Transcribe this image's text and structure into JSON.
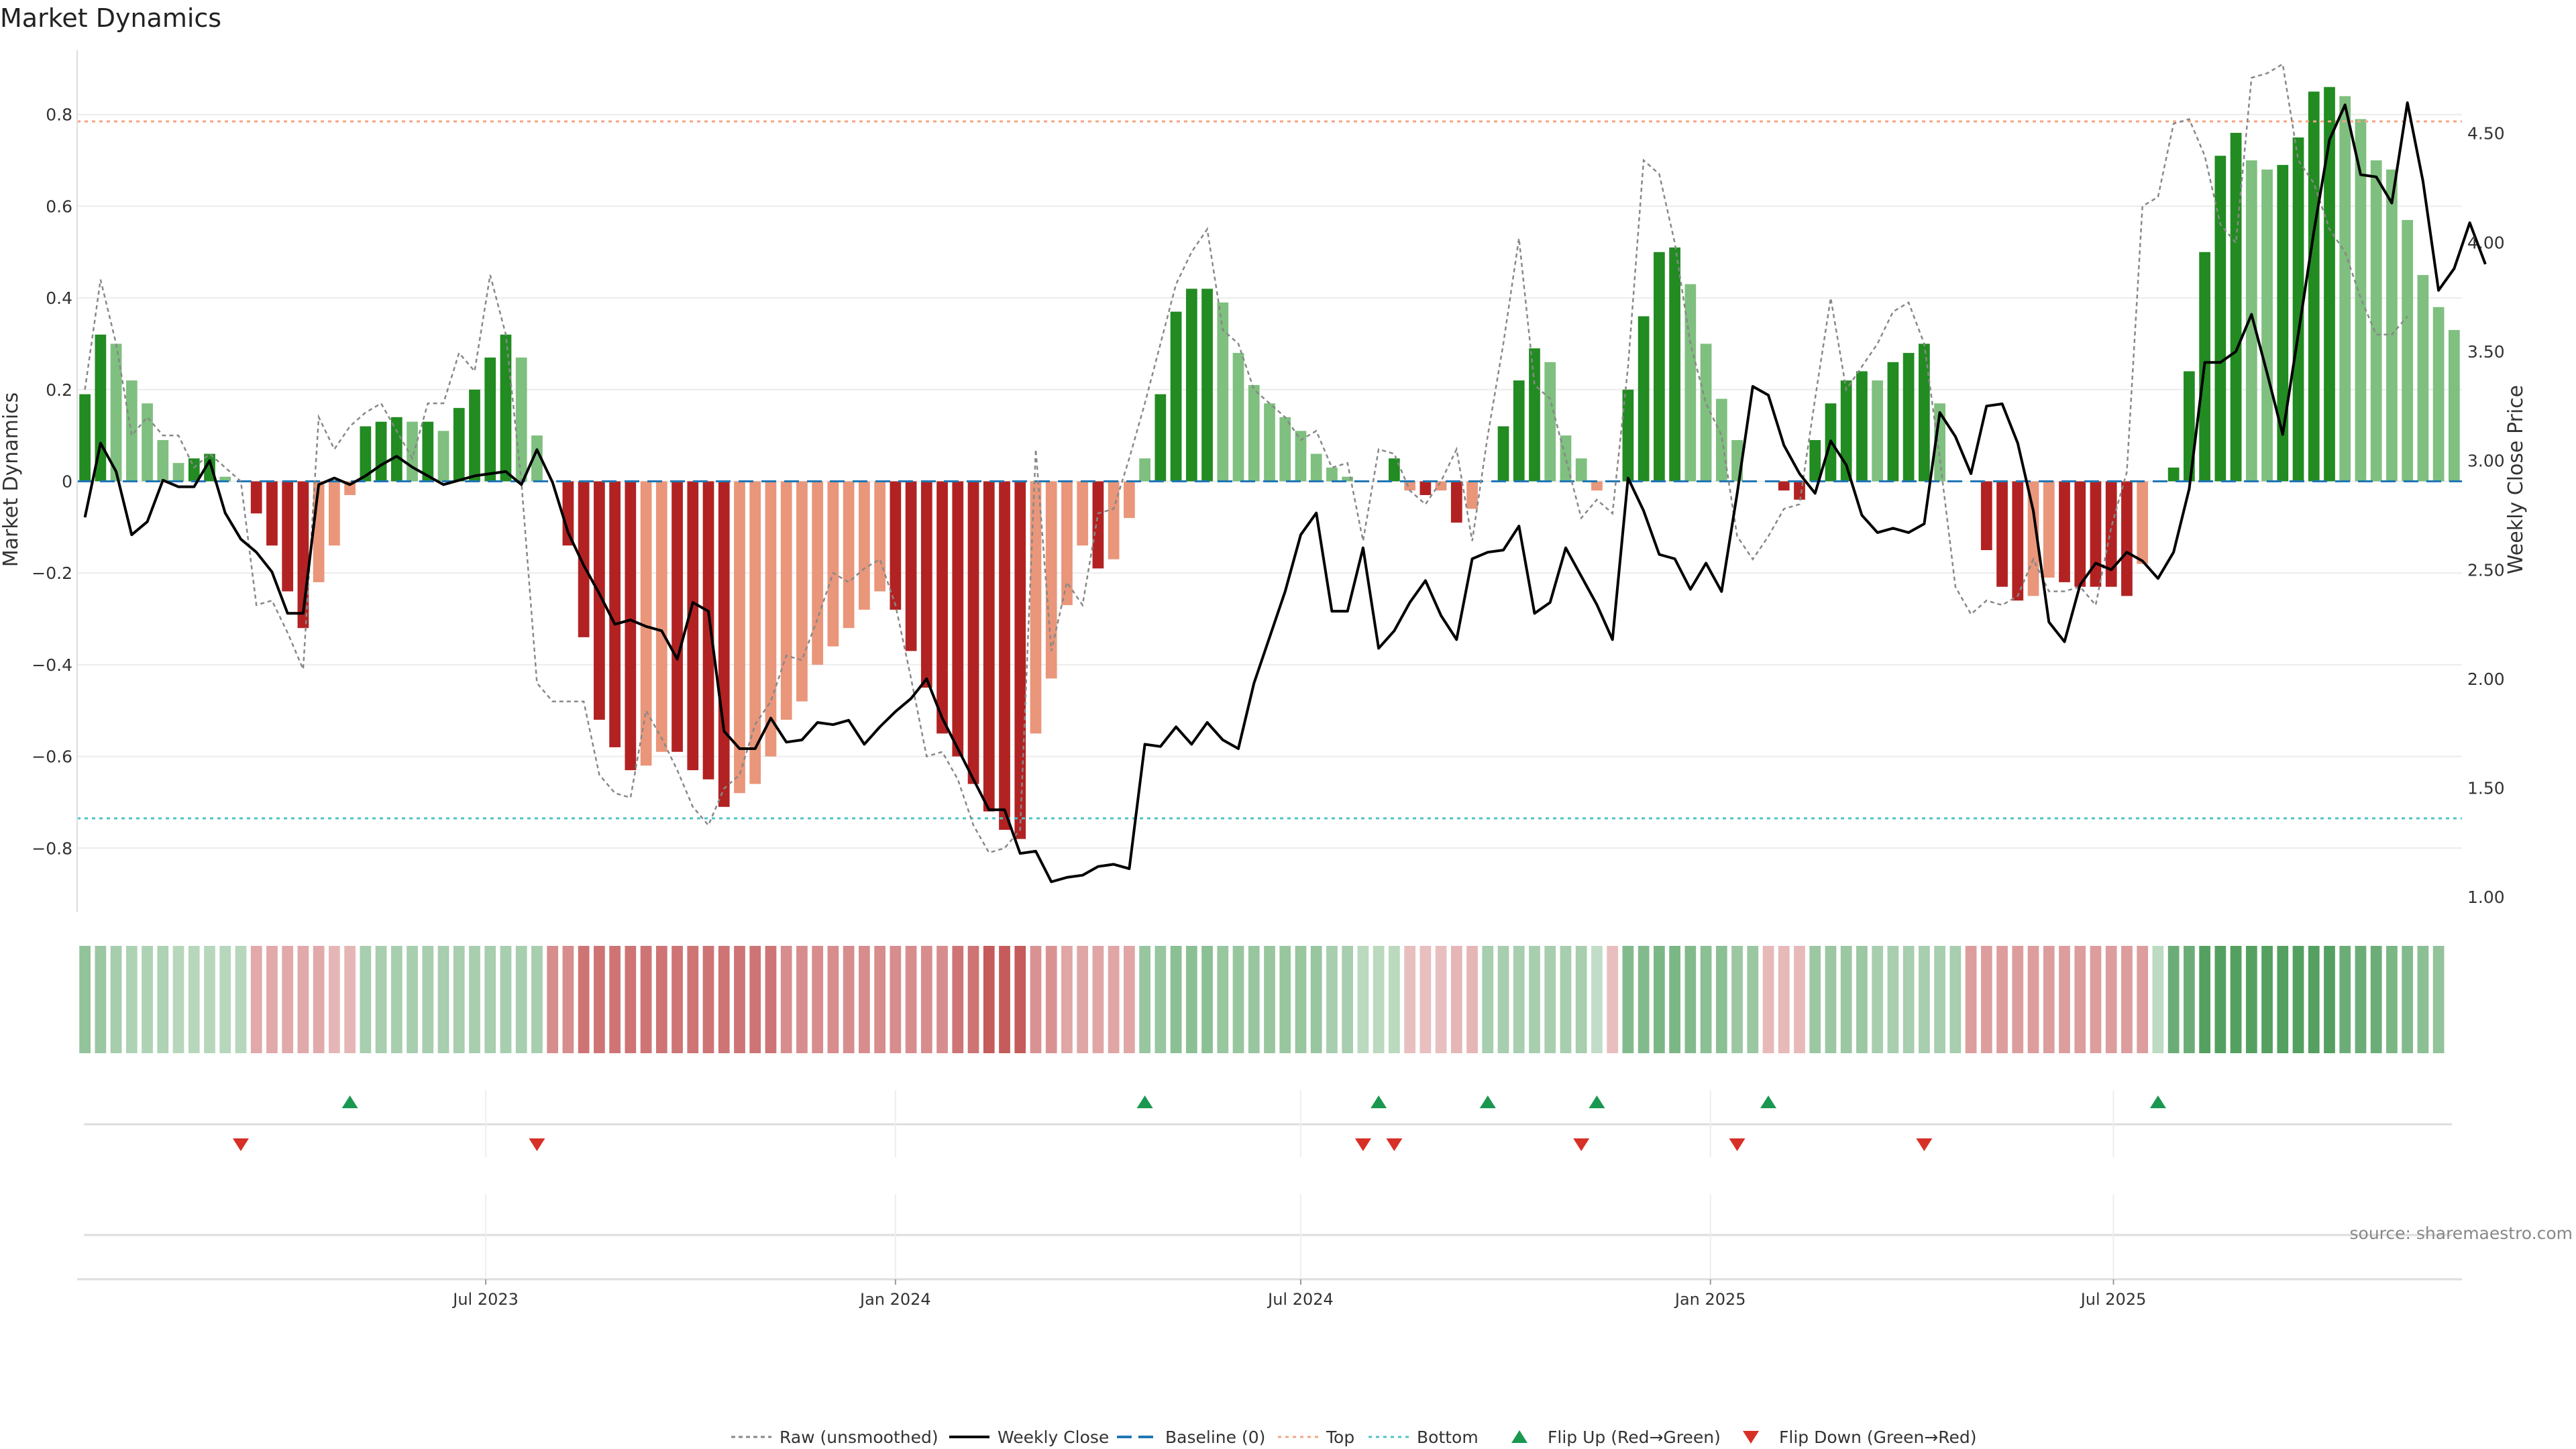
{
  "title": "Market Dynamics",
  "source_note": "source: sharemaestro.com",
  "chart_data": {
    "type": "bar",
    "ylabel_left": "Market Dynamics",
    "ylabel_right": "Weekly Close Price",
    "left_axis": {
      "ylim": [
        -0.94,
        0.94
      ],
      "ticks": [
        -0.8,
        -0.6,
        -0.4,
        -0.2,
        0,
        0.2,
        0.4,
        0.6,
        0.8
      ],
      "tick_labels": [
        "−0.8",
        "−0.6",
        "−0.4",
        "−0.2",
        "0",
        "0.2",
        "0.4",
        "0.6",
        "0.8"
      ]
    },
    "right_axis": {
      "ylim": [
        0.93,
        4.88
      ],
      "ticks": [
        1.0,
        1.5,
        2.0,
        2.5,
        3.0,
        3.5,
        4.0,
        4.5
      ],
      "tick_labels": [
        "1.00",
        "1.50",
        "2.00",
        "2.50",
        "3.00",
        "3.50",
        "4.00",
        "4.50"
      ]
    },
    "top_level": 0.785,
    "bottom_level": -0.735,
    "x_axis": {
      "start": "2023-01-02",
      "ticks": [
        {
          "date": "2023-07-01",
          "label": "Jul 2023"
        },
        {
          "date": "2024-01-01",
          "label": "Jan 2024"
        },
        {
          "date": "2024-07-01",
          "label": "Jul 2024"
        },
        {
          "date": "2025-01-01",
          "label": "Jan 2025"
        },
        {
          "date": "2025-07-01",
          "label": "Jul 2025"
        }
      ]
    },
    "bars": [
      0.19,
      0.32,
      0.3,
      0.22,
      0.17,
      0.09,
      0.04,
      0.05,
      0.06,
      0.01,
      0.0,
      -0.07,
      -0.14,
      -0.24,
      -0.32,
      -0.22,
      -0.14,
      -0.03,
      0.12,
      0.13,
      0.14,
      0.13,
      0.13,
      0.11,
      0.16,
      0.2,
      0.27,
      0.32,
      0.27,
      0.1,
      0.0,
      -0.14,
      -0.34,
      -0.52,
      -0.58,
      -0.63,
      -0.62,
      -0.59,
      -0.59,
      -0.63,
      -0.65,
      -0.71,
      -0.68,
      -0.66,
      -0.6,
      -0.52,
      -0.48,
      -0.4,
      -0.36,
      -0.32,
      -0.28,
      -0.24,
      -0.28,
      -0.37,
      -0.45,
      -0.55,
      -0.6,
      -0.66,
      -0.72,
      -0.76,
      -0.78,
      -0.55,
      -0.43,
      -0.27,
      -0.14,
      -0.19,
      -0.17,
      -0.08,
      0.05,
      0.19,
      0.37,
      0.42,
      0.42,
      0.39,
      0.28,
      0.21,
      0.17,
      0.14,
      0.11,
      0.06,
      0.03,
      0.01,
      0.0,
      0.0,
      0.05,
      -0.02,
      -0.03,
      -0.02,
      -0.09,
      -0.06,
      0.0,
      0.12,
      0.22,
      0.29,
      0.26,
      0.1,
      0.05,
      -0.02,
      0.0,
      0.2,
      0.36,
      0.5,
      0.51,
      0.43,
      0.3,
      0.18,
      0.09,
      0.0,
      0.0,
      -0.02,
      -0.04,
      0.09,
      0.17,
      0.22,
      0.24,
      0.22,
      0.26,
      0.28,
      0.3,
      0.17,
      0.0,
      0.0,
      -0.15,
      -0.23,
      -0.26,
      -0.25,
      -0.21,
      -0.22,
      -0.23,
      -0.23,
      -0.23,
      -0.25,
      -0.18,
      0.0,
      0.03,
      0.24,
      0.5,
      0.71,
      0.76,
      0.7,
      0.68,
      0.69,
      0.75,
      0.85,
      0.86,
      0.84,
      0.79,
      0.7,
      0.68,
      0.57,
      0.45,
      0.38,
      0.33
    ],
    "raw": [
      0.2,
      0.44,
      0.3,
      0.1,
      0.14,
      0.1,
      0.1,
      0.03,
      0.06,
      0.03,
      0.0,
      -0.27,
      -0.26,
      -0.33,
      -0.41,
      0.14,
      0.07,
      0.12,
      0.15,
      0.17,
      0.11,
      0.05,
      0.17,
      0.17,
      0.28,
      0.24,
      0.45,
      0.32,
      0.0,
      -0.44,
      -0.48,
      -0.48,
      -0.48,
      -0.64,
      -0.68,
      -0.69,
      -0.5,
      -0.56,
      -0.63,
      -0.71,
      -0.75,
      -0.67,
      -0.64,
      -0.53,
      -0.48,
      -0.38,
      -0.39,
      -0.3,
      -0.2,
      -0.22,
      -0.19,
      -0.17,
      -0.27,
      -0.43,
      -0.6,
      -0.59,
      -0.65,
      -0.75,
      -0.81,
      -0.8,
      -0.76,
      0.07,
      -0.37,
      -0.22,
      -0.27,
      -0.07,
      -0.06,
      0.05,
      0.17,
      0.3,
      0.43,
      0.5,
      0.55,
      0.33,
      0.3,
      0.2,
      0.17,
      0.14,
      0.09,
      0.11,
      0.03,
      0.04,
      -0.13,
      0.07,
      0.06,
      -0.02,
      -0.05,
      0.0,
      0.07,
      -0.13,
      0.1,
      0.3,
      0.53,
      0.21,
      0.18,
      0.05,
      -0.08,
      -0.04,
      -0.07,
      0.25,
      0.7,
      0.67,
      0.52,
      0.3,
      0.17,
      0.1,
      -0.12,
      -0.17,
      -0.12,
      -0.06,
      -0.05,
      0.18,
      0.4,
      0.2,
      0.25,
      0.3,
      0.37,
      0.39,
      0.3,
      0.05,
      -0.23,
      -0.29,
      -0.26,
      -0.27,
      -0.25,
      -0.17,
      -0.24,
      -0.24,
      -0.23,
      -0.27,
      -0.1,
      0.02,
      0.6,
      0.62,
      0.78,
      0.79,
      0.71,
      0.56,
      0.52,
      0.88,
      0.89,
      0.91,
      0.7,
      0.65,
      0.55,
      0.5,
      0.4,
      0.32,
      0.32,
      0.36
    ],
    "series": [
      {
        "name": "Weekly Close",
        "values": [
          2.74,
          3.08,
          2.95,
          2.66,
          2.72,
          2.91,
          2.88,
          2.88,
          3.0,
          2.76,
          2.64,
          2.58,
          2.49,
          2.3,
          2.3,
          2.89,
          2.92,
          2.89,
          2.93,
          2.98,
          3.02,
          2.97,
          2.93,
          2.89,
          2.91,
          2.93,
          2.94,
          2.95,
          2.89,
          3.05,
          2.9,
          2.67,
          2.52,
          2.39,
          2.25,
          2.27,
          2.24,
          2.22,
          2.09,
          2.35,
          2.31,
          1.76,
          1.68,
          1.68,
          1.82,
          1.71,
          1.72,
          1.8,
          1.79,
          1.81,
          1.7,
          1.78,
          1.85,
          1.91,
          2.0,
          1.82,
          1.68,
          1.54,
          1.4,
          1.4,
          1.2,
          1.21,
          1.07,
          1.09,
          1.1,
          1.14,
          1.15,
          1.13,
          1.7,
          1.69,
          1.78,
          1.7,
          1.8,
          1.72,
          1.68,
          1.98,
          2.19,
          2.4,
          2.66,
          2.76,
          2.31,
          2.31,
          2.6,
          2.14,
          2.22,
          2.35,
          2.45,
          2.29,
          2.18,
          2.55,
          2.58,
          2.59,
          2.7,
          2.3,
          2.35,
          2.6,
          2.47,
          2.34,
          2.18,
          2.92,
          2.77,
          2.57,
          2.55,
          2.41,
          2.53,
          2.4,
          2.85,
          3.34,
          3.3,
          3.07,
          2.94,
          2.85,
          3.09,
          2.98,
          2.75,
          2.67,
          2.69,
          2.67,
          2.71,
          3.22,
          3.11,
          2.94,
          3.25,
          3.26,
          3.08,
          2.77,
          2.26,
          2.17,
          2.43,
          2.53,
          2.5,
          2.58,
          2.54,
          2.46,
          2.58,
          2.87,
          3.45,
          3.45,
          3.5,
          3.67,
          3.4,
          3.12,
          3.58,
          4.05,
          4.47,
          4.63,
          4.31,
          4.3,
          4.18,
          4.64,
          4.28,
          3.78,
          3.88,
          4.09,
          3.9
        ]
      }
    ],
    "regime_strip": [
      0.45,
      0.4,
      0.33,
      0.28,
      0.28,
      0.28,
      0.22,
      0.22,
      0.22,
      0.22,
      0.22,
      -0.28,
      -0.28,
      -0.28,
      -0.28,
      -0.28,
      -0.2,
      -0.2,
      0.32,
      0.32,
      0.32,
      0.32,
      0.32,
      0.32,
      0.32,
      0.32,
      0.32,
      0.32,
      0.32,
      0.32,
      -0.45,
      -0.45,
      -0.6,
      -0.6,
      -0.6,
      -0.6,
      -0.6,
      -0.6,
      -0.6,
      -0.6,
      -0.6,
      -0.6,
      -0.6,
      -0.6,
      -0.6,
      -0.45,
      -0.45,
      -0.45,
      -0.45,
      -0.45,
      -0.45,
      -0.45,
      -0.45,
      -0.45,
      -0.45,
      -0.45,
      -0.6,
      -0.6,
      -0.75,
      -0.75,
      -0.75,
      -0.42,
      -0.42,
      -0.3,
      -0.3,
      -0.3,
      -0.3,
      -0.3,
      0.42,
      0.42,
      0.5,
      0.5,
      0.5,
      0.42,
      0.42,
      0.42,
      0.42,
      0.42,
      0.42,
      0.42,
      0.32,
      0.32,
      0.2,
      0.2,
      0.2,
      -0.15,
      -0.15,
      -0.15,
      -0.2,
      -0.2,
      0.32,
      0.32,
      0.32,
      0.32,
      0.32,
      0.32,
      0.32,
      0.15,
      -0.15,
      0.55,
      0.55,
      0.6,
      0.6,
      0.55,
      0.5,
      0.5,
      0.4,
      0.4,
      -0.18,
      -0.18,
      -0.18,
      0.4,
      0.4,
      0.4,
      0.4,
      0.32,
      0.32,
      0.32,
      0.32,
      0.32,
      0.32,
      -0.35,
      -0.35,
      -0.35,
      -0.35,
      -0.35,
      -0.35,
      -0.35,
      -0.35,
      -0.35,
      -0.35,
      -0.35,
      -0.35,
      0.18,
      0.7,
      0.7,
      0.85,
      0.85,
      0.85,
      0.85,
      0.85,
      0.85,
      0.85,
      0.85,
      0.85,
      0.7,
      0.7,
      0.7,
      0.6,
      0.55,
      0.5,
      0.45
    ],
    "flip_up_weeks": [
      17,
      68,
      83,
      90,
      97,
      108,
      133
    ],
    "flip_down_weeks": [
      10,
      29,
      82,
      84,
      96,
      106,
      118
    ],
    "legend": [
      "Raw (unsmoothed)",
      "Weekly Close",
      "Baseline (0)",
      "Top",
      "Bottom",
      "Flip Up (Red→Green)",
      "Flip Down (Green→Red)"
    ],
    "colors": {
      "strong_green": "#228b22",
      "light_green": "#7fbf7f",
      "strong_red": "#b22222",
      "light_red": "#e9967a",
      "close_line": "#000000",
      "raw_line": "#888888",
      "baseline": "#1f77b4",
      "top": "#f4a582",
      "bottom": "#4fc3c8",
      "flip_up": "#1a9850",
      "flip_down": "#d73027"
    }
  }
}
